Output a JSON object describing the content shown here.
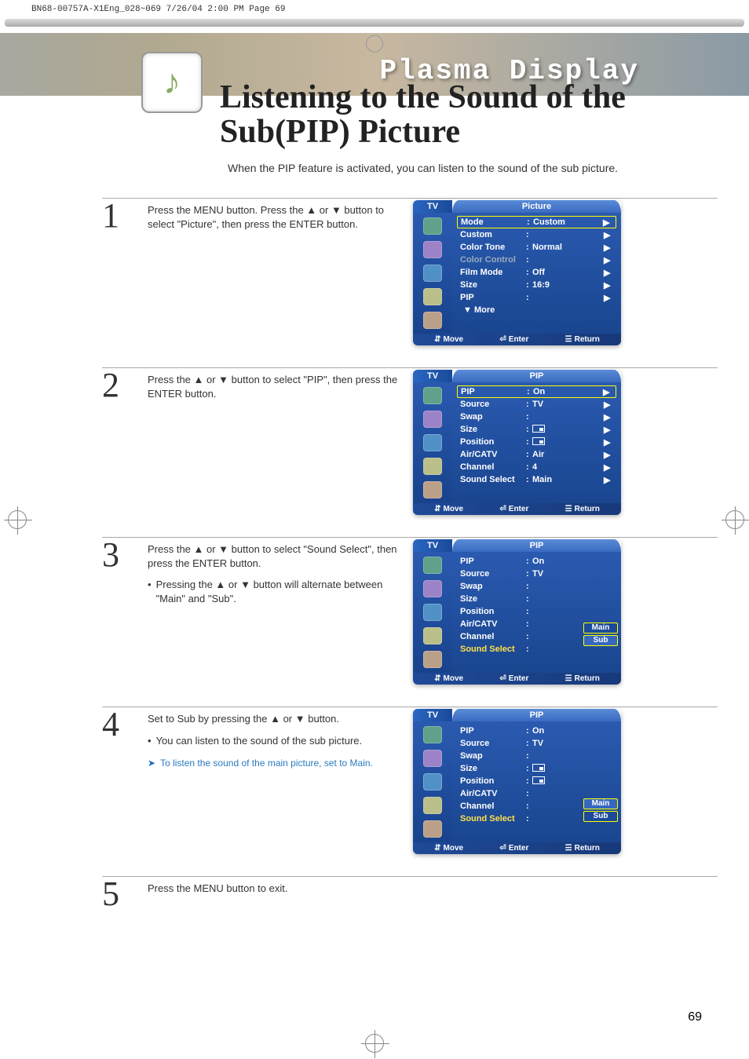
{
  "meta": {
    "header": "BN68-00757A-X1Eng_028~069  7/26/04  2:00 PM  Page 69"
  },
  "banner": {
    "brand": "Plasma Display"
  },
  "title": {
    "line1": "Listening to the Sound of the",
    "line2": "Sub(PIP) Picture"
  },
  "subtitle": "When the PIP feature is activated, you can listen to the sound of the sub picture.",
  "steps": {
    "s1": {
      "num": "1",
      "text": "Press the MENU button. Press the ▲ or ▼ button to select \"Picture\", then press the ENTER button."
    },
    "s2": {
      "num": "2",
      "text": "Press the ▲ or ▼ button to select \"PIP\", then press the ENTER button."
    },
    "s3": {
      "num": "3",
      "text": "Press the ▲ or ▼ button to select \"Sound Select\", then press the ENTER button.",
      "bullet": "Pressing the ▲ or ▼ button will alternate between \"Main\" and \"Sub\"."
    },
    "s4": {
      "num": "4",
      "text": "Set to Sub by pressing the ▲ or ▼ button.",
      "bullet": "You can listen to the sound of the sub picture.",
      "tip": "To listen the sound of the main picture, set to Main."
    },
    "s5": {
      "num": "5",
      "text": "Press the MENU button to exit."
    }
  },
  "osd": {
    "tv": "TV",
    "foot": {
      "move": "Move",
      "enter": "Enter",
      "return": "Return"
    },
    "picture": {
      "title": "Picture",
      "rows": [
        {
          "label": "Mode",
          "value": "Custom",
          "arrow": true,
          "selected": true
        },
        {
          "label": "Custom",
          "value": "",
          "arrow": true
        },
        {
          "label": "Color Tone",
          "value": "Normal",
          "arrow": true
        },
        {
          "label": "Color Control",
          "value": "",
          "arrow": true,
          "dim": true
        },
        {
          "label": "Film Mode",
          "value": "Off",
          "arrow": true
        },
        {
          "label": "Size",
          "value": "16:9",
          "arrow": true
        },
        {
          "label": "PIP",
          "value": "",
          "arrow": true
        },
        {
          "label": "▼ More",
          "value": "",
          "arrow": false,
          "more": true
        }
      ]
    },
    "pip1": {
      "title": "PIP",
      "rows": [
        {
          "label": "PIP",
          "value": "On",
          "arrow": true,
          "selected": true
        },
        {
          "label": "Source",
          "value": "TV",
          "arrow": true
        },
        {
          "label": "Swap",
          "value": "",
          "arrow": true
        },
        {
          "label": "Size",
          "value": "",
          "arrow": true,
          "icon": true
        },
        {
          "label": "Position",
          "value": "",
          "arrow": true,
          "icon": true
        },
        {
          "label": "Air/CATV",
          "value": "Air",
          "arrow": true
        },
        {
          "label": "Channel",
          "value": "4",
          "arrow": true
        },
        {
          "label": "Sound Select",
          "value": "Main",
          "arrow": true
        }
      ]
    },
    "pip2": {
      "title": "PIP",
      "rows": [
        {
          "label": "PIP",
          "value": "On"
        },
        {
          "label": "Source",
          "value": "TV"
        },
        {
          "label": "Swap",
          "value": ""
        },
        {
          "label": "Size",
          "value": ""
        },
        {
          "label": "Position",
          "value": ""
        },
        {
          "label": "Air/CATV",
          "value": ""
        },
        {
          "label": "Channel",
          "value": ""
        },
        {
          "label": "Sound Select",
          "value": "",
          "highlight": true
        }
      ],
      "options": {
        "opt1": "Main",
        "opt2": "Sub",
        "selected": 0
      }
    },
    "pip3": {
      "title": "PIP",
      "rows": [
        {
          "label": "PIP",
          "value": "On"
        },
        {
          "label": "Source",
          "value": "TV"
        },
        {
          "label": "Swap",
          "value": ""
        },
        {
          "label": "Size",
          "value": "",
          "icon": true
        },
        {
          "label": "Position",
          "value": "",
          "icon": true
        },
        {
          "label": "Air/CATV",
          "value": ""
        },
        {
          "label": "Channel",
          "value": ""
        },
        {
          "label": "Sound Select",
          "value": "",
          "highlight": true
        }
      ],
      "options": {
        "opt1": "Main",
        "opt2": "Sub",
        "selected": 1
      }
    }
  },
  "pageNum": "69"
}
